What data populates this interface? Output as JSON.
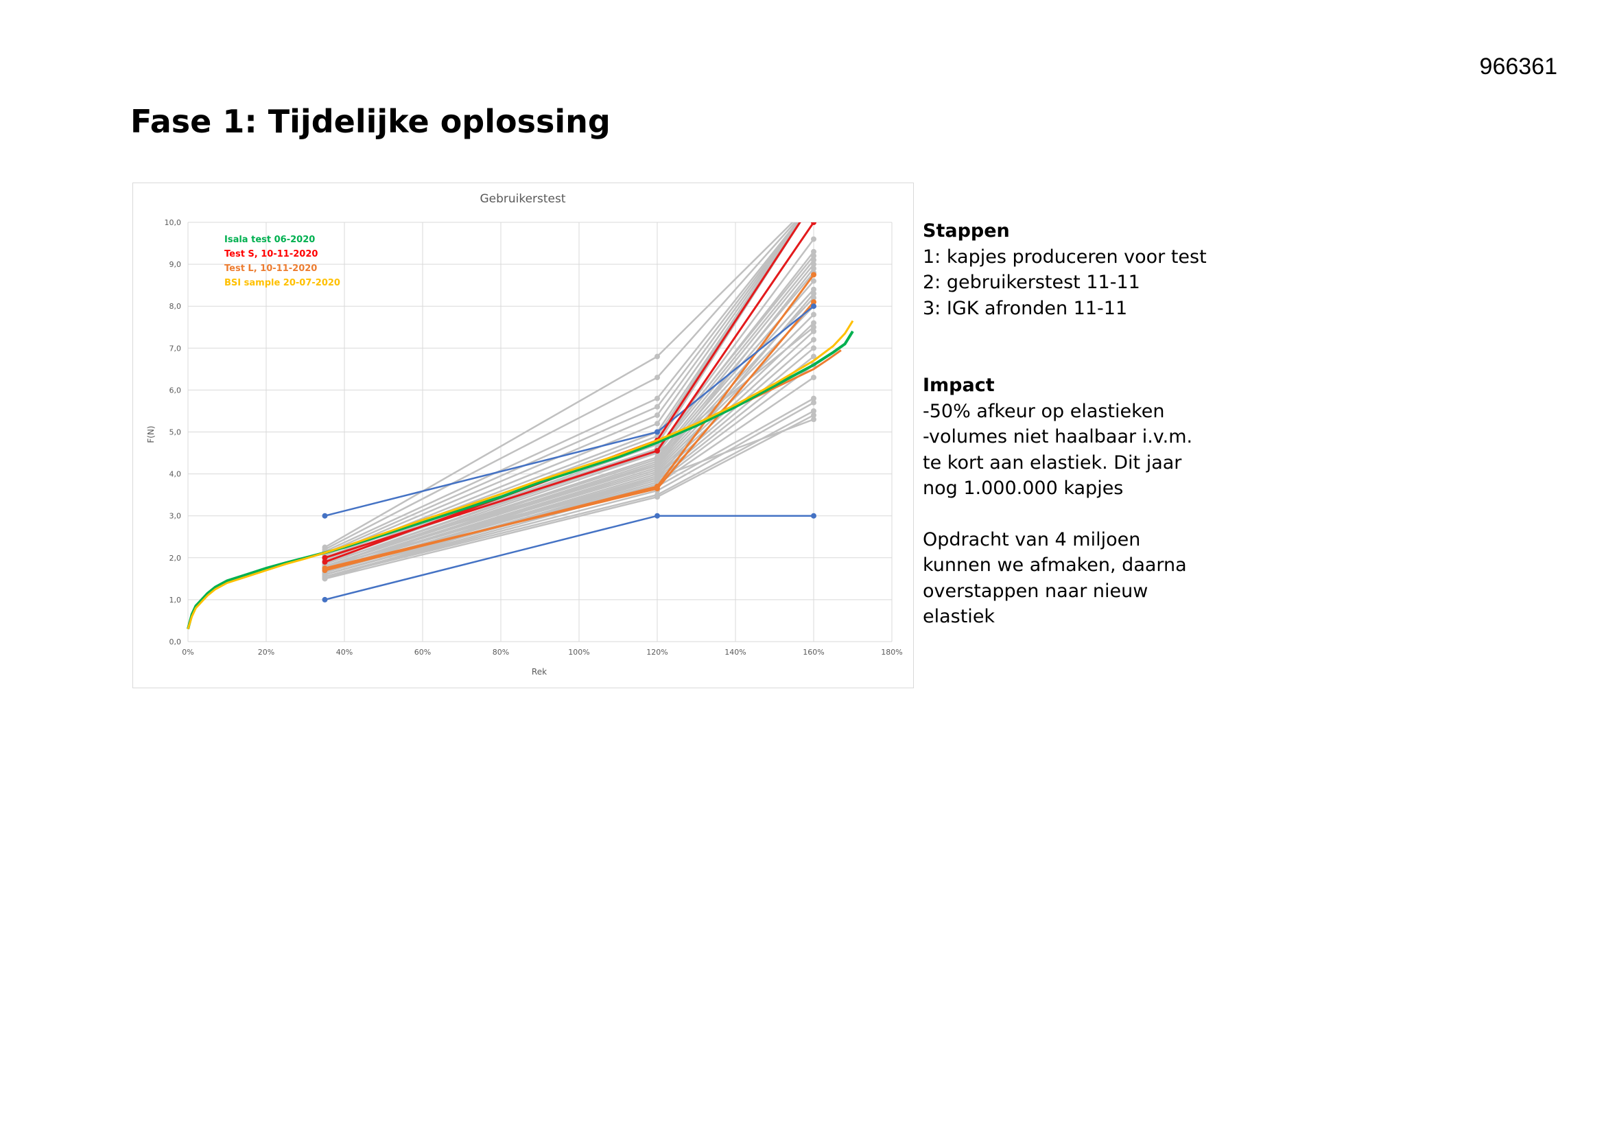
{
  "doc_id": "966361",
  "slide_title": "Fase 1: Tijdelijke oplossing",
  "side_panel": {
    "steps_heading": "Stappen",
    "steps": [
      "1: kapjes produceren voor test",
      "2: gebruikerstest 11-11",
      "3: IGK afronden 11-11"
    ],
    "impact_heading": "Impact",
    "impact_lines": [
      "-50% afkeur op elastieken",
      "-volumes niet haalbaar i.v.m.",
      "te kort aan elastiek. Dit jaar",
      "nog 1.000.000 kapjes"
    ],
    "note_lines": [
      "Opdracht van 4 miljoen",
      "kunnen we afmaken, daarna",
      "overstappen naar nieuw",
      "elastiek"
    ]
  },
  "chart_data": {
    "type": "line",
    "title": "Gebruikerstest",
    "xlabel": "Rek",
    "ylabel": "F(N)",
    "xlim": [
      0,
      180
    ],
    "ylim": [
      0,
      10
    ],
    "x_ticks": [
      "0%",
      "20%",
      "40%",
      "60%",
      "80%",
      "100%",
      "120%",
      "140%",
      "160%",
      "180%"
    ],
    "y_ticks": [
      "0,0",
      "1,0",
      "2,0",
      "3,0",
      "4,0",
      "5,0",
      "6,0",
      "7,0",
      "8,0",
      "9,0",
      "10,0"
    ],
    "grid": true,
    "legend_position": "top-left",
    "legend": [
      {
        "label": "Isala test 06-2020",
        "color": "#00b050"
      },
      {
        "label": "Test S, 10-11-2020",
        "color": "#ff0000"
      },
      {
        "label": "Test L, 10-11-2020",
        "color": "#ed7d31"
      },
      {
        "label": "BSI sample 20-07-2020",
        "color": "#ffc000"
      }
    ],
    "colors": {
      "grey": "#c0c0c0",
      "blue": "#4472c4",
      "red": "#e31a1c",
      "orange": "#ed7d31",
      "green": "#00b050",
      "yellow": "#ffc000"
    },
    "grey_series": [
      [
        2.25,
        6.8,
        10.5
      ],
      [
        2.2,
        6.3,
        10.5
      ],
      [
        2.15,
        5.8,
        10.5
      ],
      [
        2.1,
        5.6,
        10.5
      ],
      [
        2.05,
        5.4,
        10.5
      ],
      [
        2.0,
        5.2,
        10.5
      ],
      [
        2.0,
        5.0,
        10.5
      ],
      [
        1.95,
        4.9,
        10.5
      ],
      [
        1.9,
        4.8,
        10.5
      ],
      [
        1.9,
        4.7,
        10.5
      ],
      [
        1.85,
        4.6,
        9.6
      ],
      [
        1.85,
        4.55,
        9.3
      ],
      [
        1.8,
        4.5,
        9.1
      ],
      [
        1.8,
        4.4,
        9.0
      ],
      [
        1.8,
        4.35,
        8.8
      ],
      [
        1.75,
        4.3,
        8.6
      ],
      [
        1.75,
        4.25,
        8.4
      ],
      [
        1.75,
        4.2,
        8.2
      ],
      [
        1.7,
        4.15,
        8.0
      ],
      [
        1.7,
        4.1,
        7.8
      ],
      [
        1.7,
        4.05,
        7.6
      ],
      [
        1.65,
        4.0,
        7.4
      ],
      [
        1.65,
        3.95,
        7.2
      ],
      [
        1.65,
        3.9,
        7.0
      ],
      [
        1.6,
        3.85,
        6.8
      ],
      [
        1.6,
        3.8,
        6.6
      ],
      [
        1.6,
        3.75,
        6.3
      ],
      [
        1.55,
        3.7,
        5.8
      ],
      [
        1.55,
        3.6,
        5.7
      ],
      [
        1.55,
        3.5,
        5.5
      ],
      [
        1.5,
        3.45,
        5.4
      ],
      [
        1.5,
        3.9,
        5.3
      ],
      [
        2.1,
        4.5,
        7.5
      ],
      [
        1.9,
        4.2,
        8.9
      ],
      [
        2.0,
        4.6,
        9.2
      ],
      [
        1.8,
        3.9,
        8.3
      ]
    ],
    "blue_series": [
      [
        3.0,
        5.0,
        8.0
      ],
      [
        1.0,
        3.0,
        3.0
      ]
    ],
    "red_series": [
      [
        1.9,
        4.8,
        10.5
      ],
      [
        2.0,
        4.55,
        10.0
      ]
    ],
    "orange_series": [
      [
        1.7,
        3.7,
        8.75
      ],
      [
        1.75,
        3.65,
        8.1
      ]
    ],
    "green_curve": {
      "x": [
        0,
        1,
        2,
        3,
        4,
        5,
        7,
        10,
        15,
        20,
        25,
        30,
        35,
        40,
        50,
        60,
        70,
        80,
        90,
        100,
        110,
        120,
        130,
        140,
        150,
        160,
        165,
        168,
        170
      ],
      "y": [
        0.3,
        0.65,
        0.85,
        0.95,
        1.05,
        1.15,
        1.3,
        1.45,
        1.6,
        1.75,
        1.88,
        2.0,
        2.12,
        2.25,
        2.55,
        2.85,
        3.15,
        3.45,
        3.8,
        4.1,
        4.4,
        4.75,
        5.15,
        5.6,
        6.1,
        6.6,
        6.9,
        7.1,
        7.4
      ]
    },
    "yellow_curve": {
      "x": [
        0,
        1,
        2,
        3,
        4,
        5,
        7,
        10,
        15,
        20,
        25,
        30,
        35,
        40,
        50,
        60,
        70,
        80,
        90,
        100,
        110,
        120,
        130,
        140,
        150,
        160,
        165,
        168,
        170
      ],
      "y": [
        0.3,
        0.6,
        0.8,
        0.9,
        1.0,
        1.1,
        1.25,
        1.4,
        1.55,
        1.7,
        1.85,
        1.98,
        2.12,
        2.27,
        2.58,
        2.9,
        3.2,
        3.52,
        3.85,
        4.15,
        4.45,
        4.8,
        5.2,
        5.65,
        6.15,
        6.7,
        7.05,
        7.35,
        7.65
      ]
    },
    "orange_curve_tail": {
      "x": [
        140,
        150,
        160,
        164,
        167
      ],
      "y": [
        5.6,
        6.05,
        6.5,
        6.75,
        6.95
      ]
    },
    "series_x": [
      35,
      120,
      160
    ]
  }
}
